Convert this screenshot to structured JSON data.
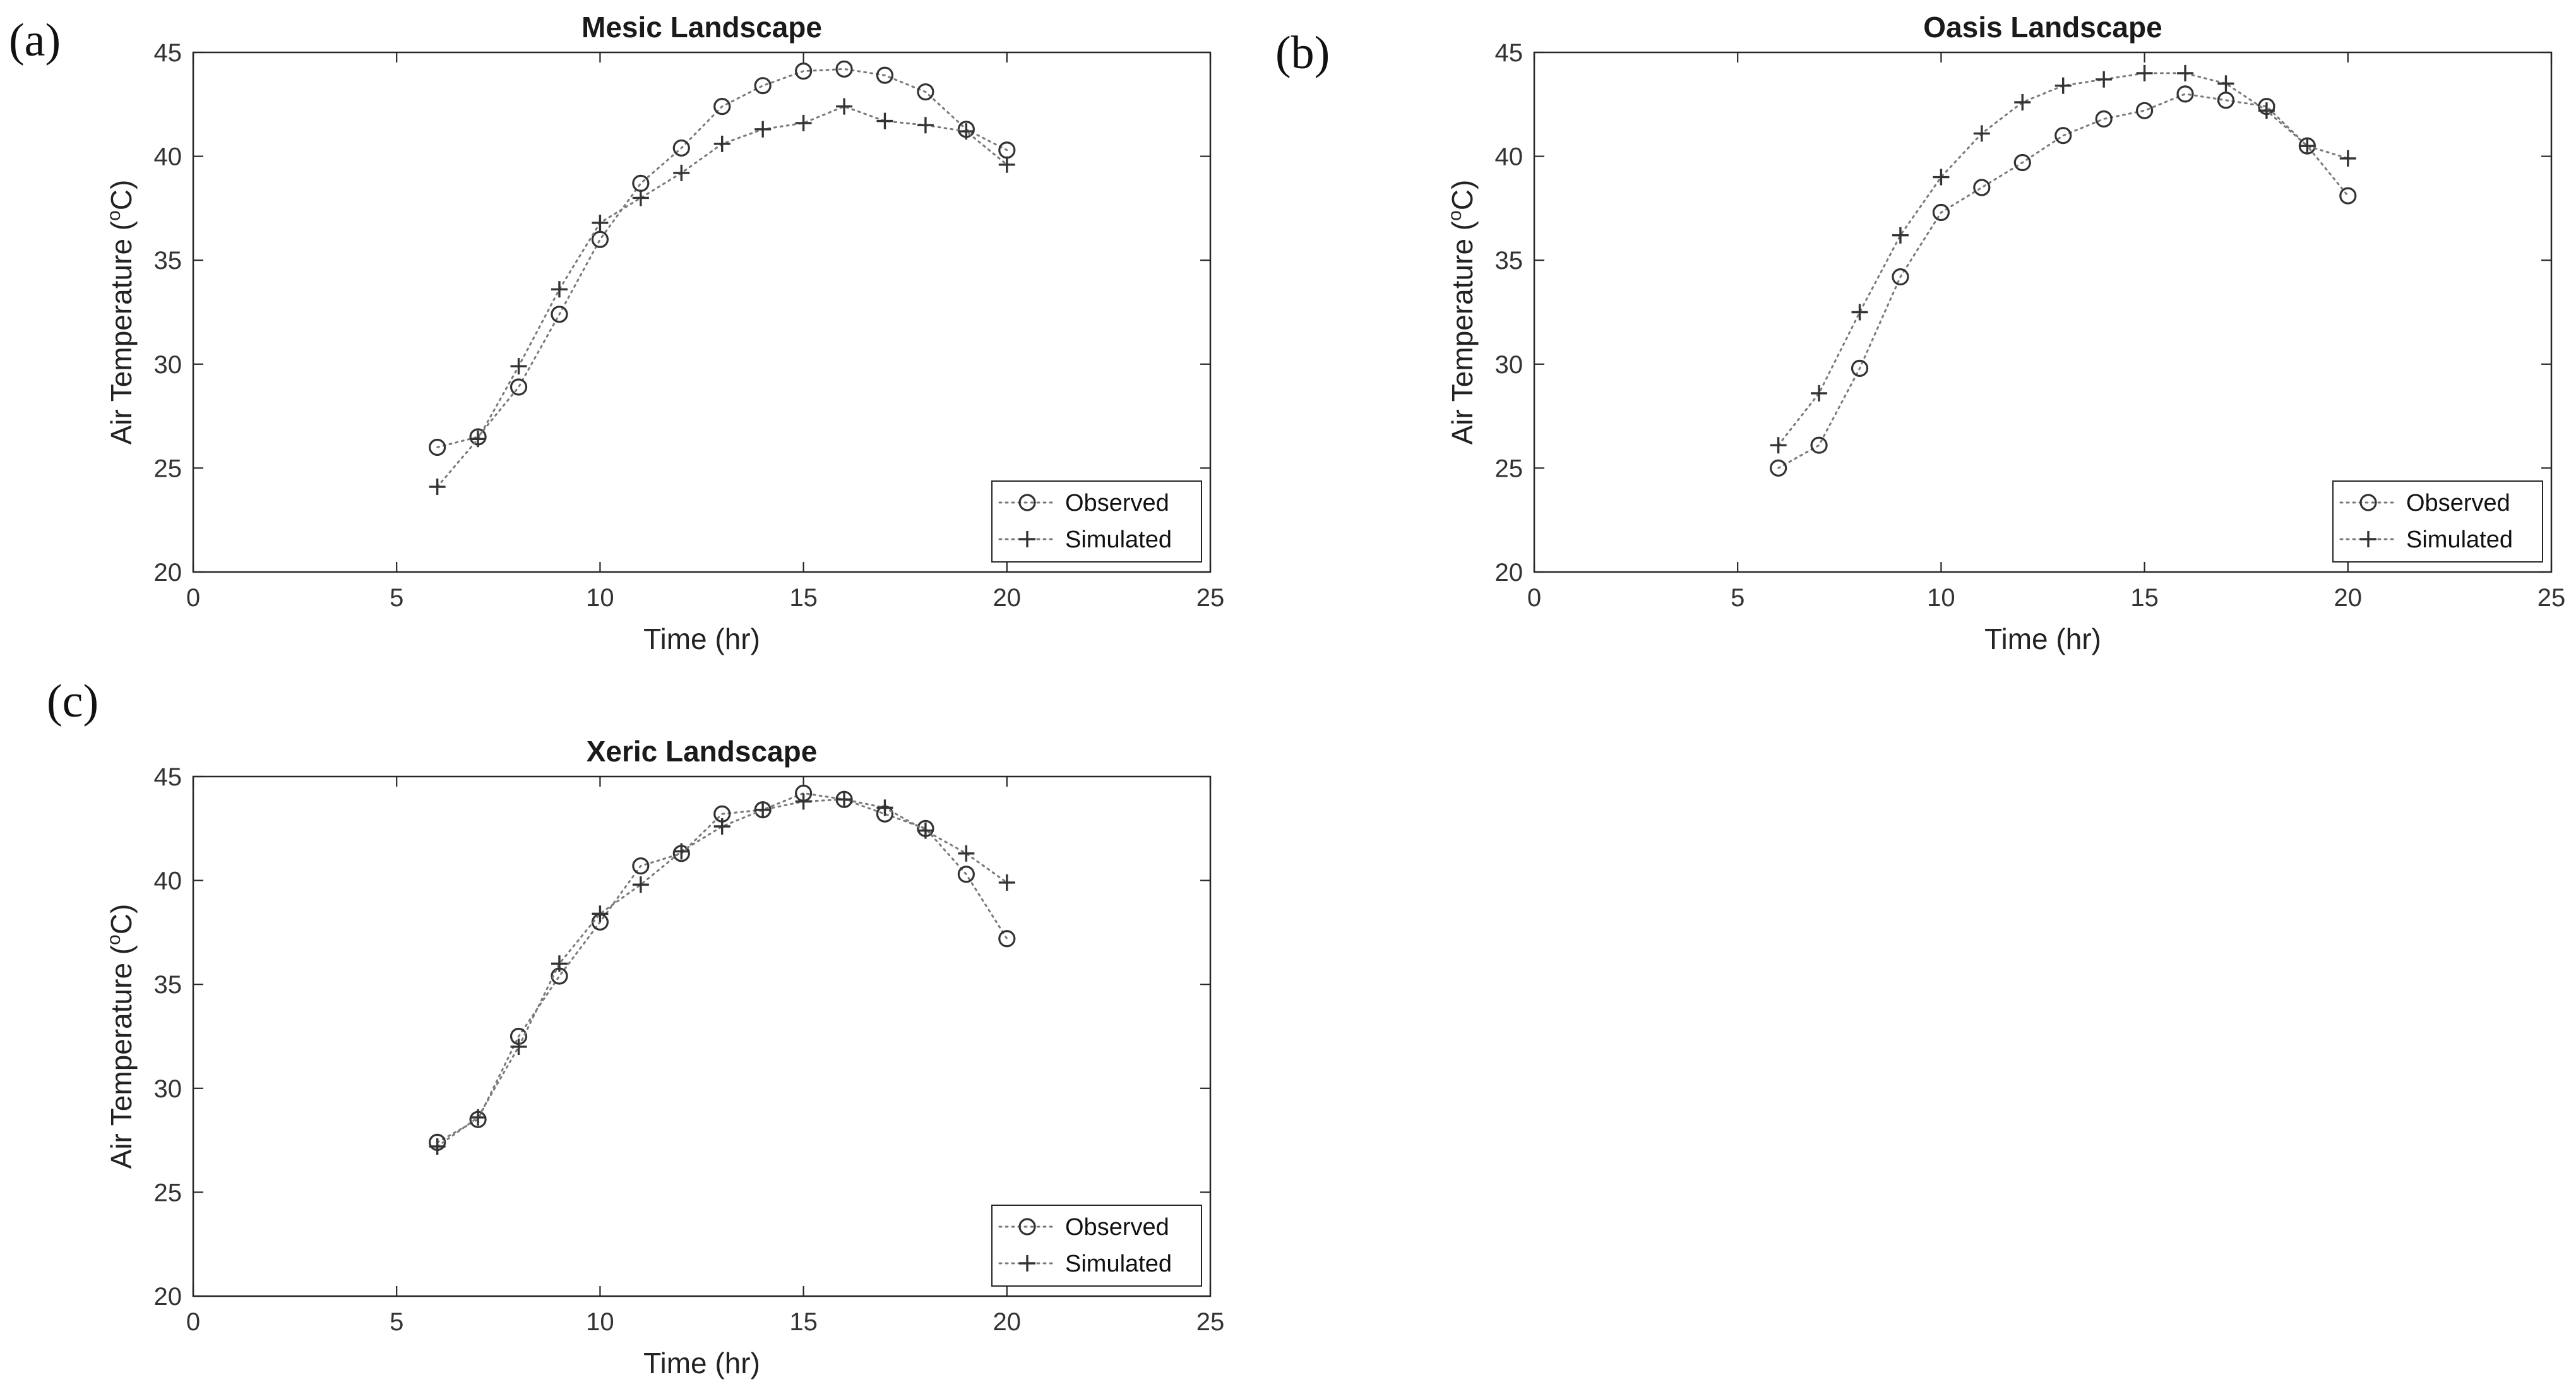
{
  "chart_data": [
    {
      "panel_label": "(a)",
      "type": "line",
      "title": "Mesic Landscape",
      "xlabel": "Time (hr)",
      "ylabel": "Air Temperature (",
      "ylabel_sup": "o",
      "ylabel_end": "C)",
      "xlim": [
        0,
        25
      ],
      "ylim": [
        20,
        45
      ],
      "xticks": [
        0,
        5,
        10,
        15,
        20,
        25
      ],
      "yticks": [
        20,
        25,
        30,
        35,
        40,
        45
      ],
      "legend_position": "bottom-right",
      "x": [
        6,
        7,
        8,
        9,
        10,
        11,
        12,
        13,
        14,
        15,
        16,
        17,
        18,
        19,
        20
      ],
      "series": [
        {
          "name": "Observed",
          "marker": "circle",
          "values": [
            26.0,
            26.5,
            28.9,
            32.4,
            36.0,
            38.7,
            40.4,
            42.4,
            43.4,
            44.1,
            44.2,
            43.9,
            43.1,
            41.3,
            40.3
          ]
        },
        {
          "name": "Simulated",
          "marker": "plus",
          "values": [
            24.1,
            26.4,
            29.9,
            33.6,
            36.8,
            38.0,
            39.2,
            40.6,
            41.3,
            41.6,
            42.4,
            41.7,
            41.5,
            41.2,
            39.6
          ]
        }
      ]
    },
    {
      "panel_label": "(b)",
      "type": "line",
      "title": "Oasis Landscape",
      "xlabel": "Time (hr)",
      "ylabel": "Air Temperature (",
      "ylabel_sup": "o",
      "ylabel_end": "C)",
      "xlim": [
        0,
        25
      ],
      "ylim": [
        20,
        45
      ],
      "xticks": [
        0,
        5,
        10,
        15,
        20,
        25
      ],
      "yticks": [
        20,
        25,
        30,
        35,
        40,
        45
      ],
      "legend_position": "bottom-right",
      "x": [
        6,
        7,
        8,
        9,
        10,
        11,
        12,
        13,
        14,
        15,
        16,
        17,
        18,
        19,
        20
      ],
      "series": [
        {
          "name": "Observed",
          "marker": "circle",
          "values": [
            25.0,
            26.1,
            29.8,
            34.2,
            37.3,
            38.5,
            39.7,
            41.0,
            41.8,
            42.2,
            43.0,
            42.7,
            42.4,
            40.5,
            38.1
          ]
        },
        {
          "name": "Simulated",
          "marker": "plus",
          "values": [
            26.1,
            28.6,
            32.5,
            36.2,
            39.0,
            41.1,
            42.6,
            43.4,
            43.7,
            44.0,
            44.0,
            43.5,
            42.2,
            40.5,
            39.9
          ]
        }
      ]
    },
    {
      "panel_label": "(c)",
      "type": "line",
      "title": "Xeric Landscape",
      "xlabel": "Time (hr)",
      "ylabel": "Air Temperature (",
      "ylabel_sup": "o",
      "ylabel_end": "C)",
      "xlim": [
        0,
        25
      ],
      "ylim": [
        20,
        45
      ],
      "xticks": [
        0,
        5,
        10,
        15,
        20,
        25
      ],
      "yticks": [
        20,
        25,
        30,
        35,
        40,
        45
      ],
      "legend_position": "bottom-right",
      "x": [
        6,
        7,
        8,
        9,
        10,
        11,
        12,
        13,
        14,
        15,
        16,
        17,
        18,
        19,
        20
      ],
      "series": [
        {
          "name": "Observed",
          "marker": "circle",
          "values": [
            27.4,
            28.5,
            32.5,
            35.4,
            38.0,
            40.7,
            41.3,
            43.2,
            43.4,
            44.2,
            43.9,
            43.2,
            42.5,
            40.3,
            37.2
          ]
        },
        {
          "name": "Simulated",
          "marker": "plus",
          "values": [
            27.2,
            28.6,
            32.0,
            36.0,
            38.4,
            39.8,
            41.4,
            42.6,
            43.4,
            43.8,
            43.9,
            43.5,
            42.4,
            41.3,
            39.9
          ]
        }
      ]
    }
  ],
  "colors": {
    "axes": "#262626",
    "series_line": "#7a7a7a",
    "marker": "#333333",
    "text": "#1a1a1a"
  }
}
